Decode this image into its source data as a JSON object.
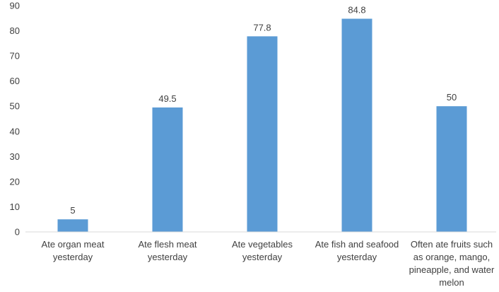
{
  "chart_data": {
    "type": "bar",
    "title": "",
    "xlabel": "",
    "ylabel": "",
    "ylim": [
      0,
      90
    ],
    "yticks": [
      "0",
      "10",
      "20",
      "30",
      "40",
      "50",
      "60",
      "70",
      "80",
      "90"
    ],
    "grid": false,
    "legend": "none",
    "bar_color": "#5b9bd5",
    "categories": [
      "Ate organ meat yesterday",
      "Ate flesh meat yesterday",
      "Ate vegetables yesterday",
      "Ate fish and seafood yesterday",
      "Often ate fruits such as orange, mango, pineapple, and water melon"
    ],
    "category_lines": [
      [
        "Ate organ meat",
        "yesterday"
      ],
      [
        "Ate flesh meat",
        "yesterday"
      ],
      [
        "Ate vegetables",
        "yesterday"
      ],
      [
        "Ate fish and seafood",
        "yesterday"
      ],
      [
        "Often ate fruits such",
        "as orange, mango,",
        "pineapple, and water",
        "melon"
      ]
    ],
    "values": [
      5,
      49.5,
      77.8,
      84.8,
      50
    ],
    "data_labels": [
      "5",
      "49.5",
      "77.8",
      "84.8",
      "50"
    ]
  }
}
